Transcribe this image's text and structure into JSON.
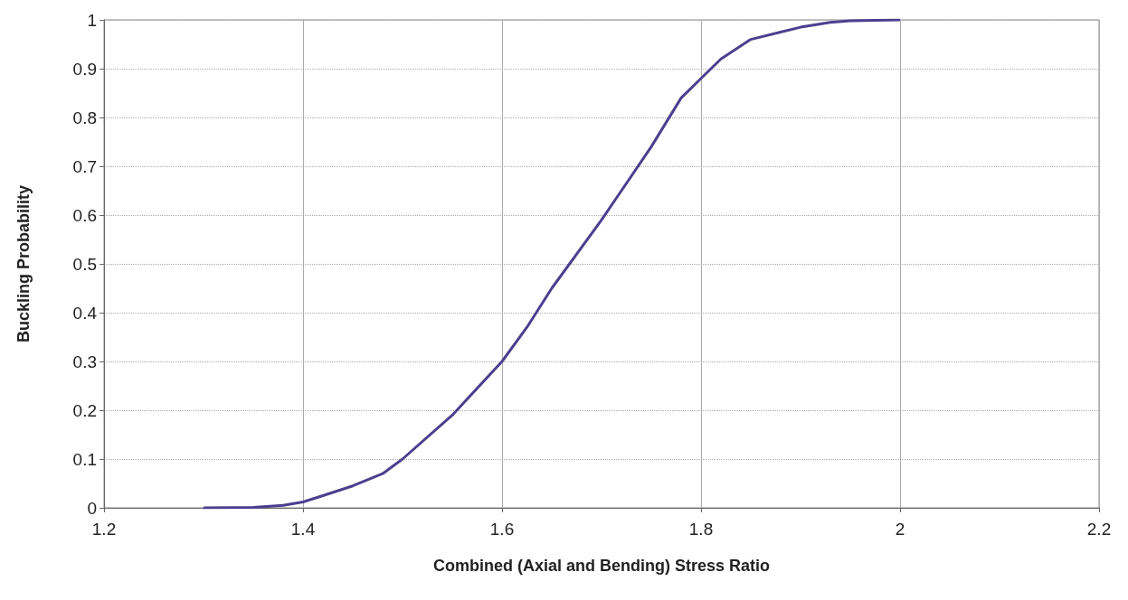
{
  "chart_data": {
    "type": "line",
    "xlabel": "Combined (Axial and Bending) Stress Ratio",
    "ylabel": "Buckling Probability",
    "x": [
      1.3,
      1.35,
      1.38,
      1.4,
      1.42,
      1.45,
      1.48,
      1.5,
      1.55,
      1.6,
      1.625,
      1.65,
      1.7,
      1.72,
      1.75,
      1.78,
      1.8,
      1.82,
      1.85,
      1.88,
      1.9,
      1.93,
      1.95,
      2.0
    ],
    "series": [
      {
        "color": "#4b3f8f",
        "values": [
          0,
          0.001,
          0.005,
          0.012,
          0.025,
          0.045,
          0.07,
          0.1,
          0.19,
          0.3,
          0.37,
          0.45,
          0.59,
          0.65,
          0.74,
          0.84,
          0.88,
          0.92,
          0.96,
          0.975,
          0.985,
          0.995,
          0.998,
          1.0
        ]
      }
    ],
    "xlim": [
      1.2,
      2.2
    ],
    "xticks": [
      1.2,
      1.4,
      1.6,
      1.8,
      2,
      2.2
    ],
    "ylim": [
      0,
      1
    ],
    "yticks": [
      0,
      0.1,
      0.2,
      0.3,
      0.4,
      0.5,
      0.6,
      0.7,
      0.8,
      0.9,
      1
    ],
    "grid": true,
    "marker": "none",
    "line_style": "solid"
  }
}
